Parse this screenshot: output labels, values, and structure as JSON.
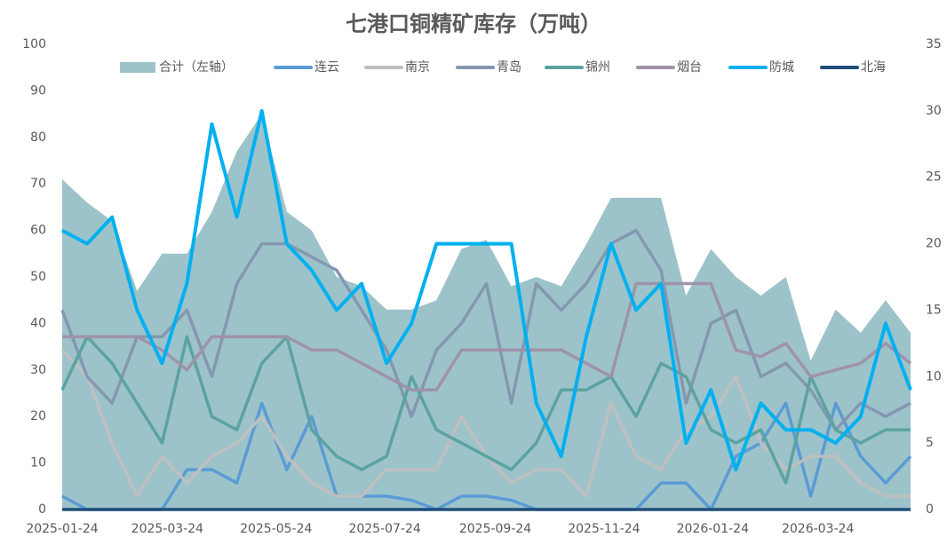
{
  "chart_data": {
    "type": "line",
    "title": "七港口铜精矿库存（万吨）",
    "x": [
      "2025-01-24",
      "2025-02-07",
      "2025-02-21",
      "2025-03-07",
      "2025-03-21",
      "2025-04-04",
      "2025-04-18",
      "2025-05-02",
      "2025-05-16",
      "2025-05-30",
      "2025-06-13",
      "2025-06-27",
      "2025-07-11",
      "2025-07-25",
      "2025-08-08",
      "2025-08-22",
      "2025-09-05",
      "2025-09-19",
      "2025-10-03",
      "2025-10-17",
      "2025-10-31",
      "2025-11-14",
      "2025-11-28",
      "2025-12-12",
      "2025-12-26",
      "2026-01-09",
      "2026-01-23",
      "2026-02-06",
      "2026-02-20",
      "2026-03-06",
      "2026-03-20",
      "2026-04-03",
      "2026-04-17",
      "2026-05-01",
      "2026-05-15"
    ],
    "xlim": [
      "2025-01-24",
      "2026-05-15"
    ],
    "xticks": [
      "2025-01-24",
      "2025-03-24",
      "2025-05-24",
      "2025-07-24",
      "2025-09-24",
      "2025-11-24",
      "2026-01-24",
      "2026-03-24"
    ],
    "ylim": [
      0,
      100
    ],
    "yticks": [
      0,
      10,
      20,
      30,
      40,
      50,
      60,
      70,
      80,
      90,
      100
    ],
    "y2lim": [
      0,
      35
    ],
    "y2ticks": [
      0,
      5,
      10,
      15,
      20,
      25,
      30,
      35
    ],
    "legend": "top",
    "series": [
      {
        "name": "合计（左轴）",
        "type": "area",
        "axis": "y",
        "color": "#9dc3ca",
        "values": [
          71,
          66,
          62,
          47,
          55,
          55,
          64,
          77,
          85,
          64,
          60,
          50,
          48,
          43,
          43,
          45,
          56,
          58,
          48,
          50,
          48,
          57,
          67,
          67,
          67,
          46,
          56,
          50,
          46,
          50,
          32,
          43,
          38,
          45,
          38
        ]
      },
      {
        "name": "连云",
        "axis": "y2",
        "color": "#5b9bd5",
        "values": [
          1,
          0,
          0,
          0,
          0,
          3,
          3,
          2,
          8,
          3,
          7,
          1,
          1,
          1,
          0.7,
          0,
          1,
          1,
          0.7,
          0,
          0,
          0,
          0,
          0,
          2,
          2,
          0,
          4,
          5,
          8,
          1,
          8,
          4,
          2,
          4
        ]
      },
      {
        "name": "南京",
        "axis": "y2",
        "color": "#bfbfbf",
        "values": [
          12,
          10,
          5,
          1,
          4,
          2,
          4,
          5,
          7,
          4,
          2,
          1,
          1,
          3,
          3,
          3,
          7,
          4,
          2,
          3,
          3,
          1,
          8,
          4,
          3,
          6,
          7,
          10,
          5,
          3,
          4,
          4,
          2,
          1,
          1
        ]
      },
      {
        "name": "青岛",
        "axis": "y2",
        "color": "#8497b0",
        "values": [
          15,
          10,
          8,
          13,
          13,
          15,
          10,
          17,
          20,
          20,
          19,
          18,
          15,
          12,
          7,
          12,
          14,
          17,
          8,
          17,
          15,
          17,
          20,
          21,
          18,
          8,
          14,
          15,
          10,
          11,
          9,
          6,
          8,
          7,
          8
        ]
      },
      {
        "name": "锦州",
        "axis": "y2",
        "color": "#5ba3a0",
        "values": [
          9,
          13,
          11,
          8,
          5,
          13,
          7,
          6,
          11,
          13,
          6,
          4,
          3,
          4,
          10,
          6,
          5,
          4,
          3,
          5,
          9,
          9,
          10,
          7,
          11,
          10,
          6,
          5,
          6,
          2,
          10,
          6,
          5,
          6,
          6
        ]
      },
      {
        "name": "烟台",
        "axis": "y2",
        "color": "#9e93a8",
        "values": [
          13,
          13,
          13,
          13,
          12,
          10.5,
          13,
          13,
          13,
          13,
          12,
          12,
          11,
          10,
          9,
          9,
          12,
          12,
          12,
          12,
          12,
          11,
          10,
          17,
          17,
          17,
          17,
          12,
          11.5,
          12.5,
          10,
          10.5,
          11,
          12.5,
          11
        ]
      },
      {
        "name": "防城",
        "axis": "y2",
        "color": "#00b0f0",
        "values": [
          21,
          20,
          22,
          15,
          11,
          17,
          29,
          22,
          30,
          20,
          18,
          15,
          17,
          11,
          14,
          20,
          20,
          20,
          20,
          8,
          4,
          13,
          20,
          15,
          17,
          5,
          9,
          3,
          8,
          6,
          6,
          5,
          7,
          14,
          9
        ]
      },
      {
        "name": "北海",
        "axis": "y2",
        "color": "#1f4e79",
        "values": [
          0,
          0,
          0,
          0,
          0,
          0,
          0,
          0,
          0,
          0,
          0,
          0,
          0,
          0,
          0,
          0,
          0,
          0,
          0,
          0,
          0,
          0,
          0,
          0,
          0,
          0,
          0,
          0,
          0,
          0,
          0,
          0,
          0,
          0,
          0
        ]
      }
    ]
  }
}
